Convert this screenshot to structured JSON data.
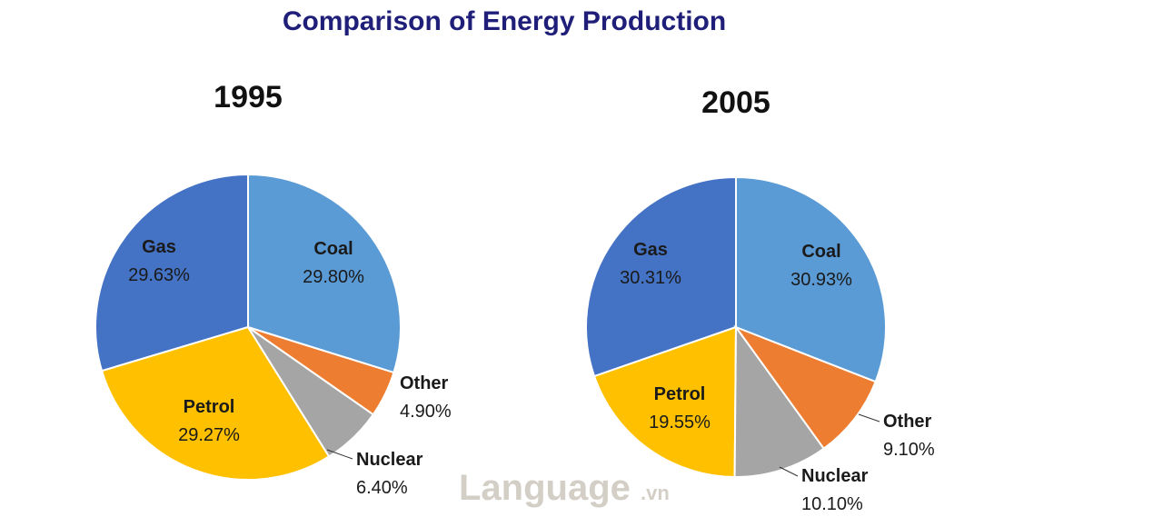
{
  "chart_data": {
    "type": "pie",
    "title": "Comparison of Energy Production",
    "colors": {
      "Coal": "#5b9bd5",
      "Other": "#ed7d31",
      "Nuclear": "#a5a5a5",
      "Petrol": "#ffc000",
      "Gas": "#4472c4",
      "title": "#1f1f7a"
    },
    "charts": [
      {
        "year": "1995",
        "slices": [
          {
            "name": "Coal",
            "value": 29.8,
            "label": "29.80%"
          },
          {
            "name": "Other",
            "value": 4.9,
            "label": "4.90%"
          },
          {
            "name": "Nuclear",
            "value": 6.4,
            "label": "6.40%"
          },
          {
            "name": "Petrol",
            "value": 29.27,
            "label": "29.27%"
          },
          {
            "name": "Gas",
            "value": 29.63,
            "label": "29.63%"
          }
        ]
      },
      {
        "year": "2005",
        "slices": [
          {
            "name": "Coal",
            "value": 30.93,
            "label": "30.93%"
          },
          {
            "name": "Other",
            "value": 9.1,
            "label": "9.10%"
          },
          {
            "name": "Nuclear",
            "value": 10.1,
            "label": "10.10%"
          },
          {
            "name": "Petrol",
            "value": 19.55,
            "label": "19.55%"
          },
          {
            "name": "Gas",
            "value": 30.31,
            "label": "30.31%"
          }
        ]
      }
    ]
  },
  "watermark": {
    "main": "Language",
    "suffix": ".vn"
  }
}
